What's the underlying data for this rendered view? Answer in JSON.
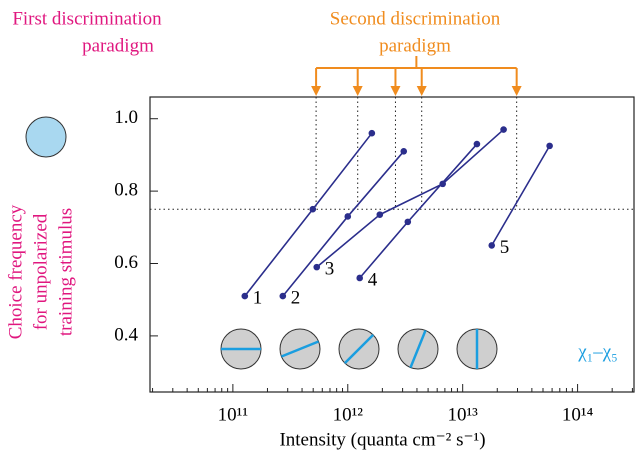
{
  "chart_data": {
    "type": "line",
    "x_label": "Intensity (quanta cm⁻² s⁻¹)",
    "y_label": [
      "Choice frequency",
      "for unpolarized",
      "training stimulus"
    ],
    "first_paradigm": [
      "First discrimination",
      "paradigm"
    ],
    "second_paradigm": [
      "Second discrimination",
      "paradigm"
    ],
    "stimulus_label": "χ₁–χ₅",
    "x_scale": "log",
    "xlim": [
      19000000000.0,
      316000000000000.0
    ],
    "xticks": [
      {
        "value": 100000000000.0,
        "label": "10¹¹"
      },
      {
        "value": 1000000000000.0,
        "label": "10¹²"
      },
      {
        "value": 10000000000000.0,
        "label": "10¹³"
      },
      {
        "value": 100000000000000.0,
        "label": "10¹⁴"
      }
    ],
    "ylim": [
      0.245,
      1.06
    ],
    "yticks": [
      {
        "value": 1,
        "label": "1.0"
      },
      0.8,
      0.6,
      0.4
    ],
    "criterion": 0.75,
    "thresholds": [
      530000000000.0,
      1220000000000.0,
      2600000000000.0,
      4400000000000.0,
      29500000000000.0
    ],
    "series": [
      {
        "name": "1",
        "color": "#2b2e8c",
        "x": [
          127000000000.0,
          496000000000.0,
          1620000000000.0
        ],
        "values": [
          0.51,
          0.75,
          0.96
        ]
      },
      {
        "name": "2",
        "color": "#2b2e8c",
        "x": [
          272000000000.0,
          1000000000000.0,
          3070000000000.0
        ],
        "values": [
          0.51,
          0.73,
          0.91
        ]
      },
      {
        "name": "3",
        "color": "#2b2e8c",
        "x": [
          537000000000.0,
          1900000000000.0,
          6700000000000.0,
          22700000000000.0
        ],
        "values": [
          0.59,
          0.735,
          0.82,
          0.97
        ]
      },
      {
        "name": "4",
        "color": "#2b2e8c",
        "x": [
          1270000000000.0,
          3330000000000.0,
          13300000000000.0
        ],
        "values": [
          0.56,
          0.715,
          0.93
        ]
      },
      {
        "name": "5",
        "color": "#2b2e8c",
        "x": [
          17900000000000.0,
          57100000000000.0
        ],
        "values": [
          0.65,
          0.925
        ]
      }
    ]
  }
}
